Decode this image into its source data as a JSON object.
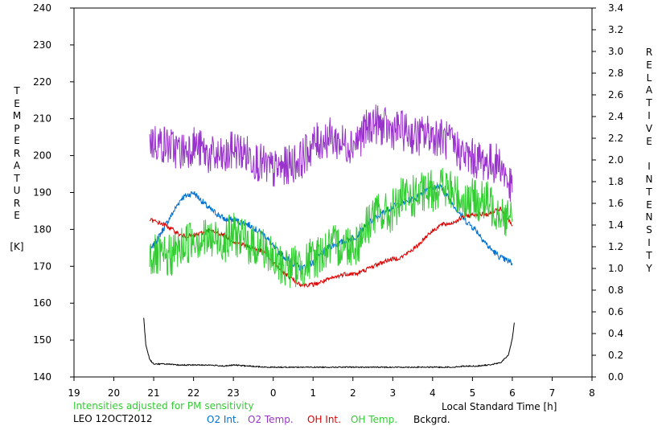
{
  "chart_data": {
    "type": "line",
    "xlabel": "Local Standard Time [h]",
    "ylabel_left": "TEMPERATURE",
    "ylabel_left_unit": "[K]",
    "ylabel_right": "RELATIVE INTENSITY",
    "x_tick_labels": [
      "19",
      "20",
      "21",
      "22",
      "23",
      "0",
      "1",
      "2",
      "3",
      "4",
      "5",
      "6",
      "7",
      "8"
    ],
    "xlim": [
      19,
      32
    ],
    "ylim_left": [
      140,
      240
    ],
    "y_left_ticks": [
      140,
      150,
      160,
      170,
      180,
      190,
      200,
      210,
      220,
      230,
      240
    ],
    "ylim_right": [
      0.0,
      3.4
    ],
    "y_right_ticks": [
      "0.0",
      "0.2",
      "0.4",
      "0.6",
      "0.8",
      "1.0",
      "1.2",
      "1.4",
      "1.6",
      "1.8",
      "2.0",
      "2.2",
      "2.4",
      "2.6",
      "2.8",
      "3.0",
      "3.2",
      "3.4"
    ],
    "note": "Intensities adjusted for PM sensitivity",
    "station": "LEO 12OCT2012",
    "colors": {
      "o2_int": "#0070d0",
      "o2_temp": "#9933cc",
      "oh_int": "#dd0000",
      "oh_temp": "#33cc33",
      "bckgrd": "#000000",
      "note": "#33cc33"
    },
    "series": [
      {
        "name": "O2 Int.",
        "color_key": "o2_int",
        "axis": "right",
        "noise": 0.03,
        "x": [
          20.9,
          21.3,
          21.7,
          22.0,
          22.4,
          22.8,
          23.0,
          23.4,
          23.8,
          24.0,
          24.3,
          24.7,
          25.0,
          25.4,
          25.8,
          26.1,
          26.5,
          26.9,
          27.2,
          27.6,
          27.9,
          28.2,
          28.5,
          28.8,
          29.1,
          29.4,
          29.7,
          30.0
        ],
        "y": [
          1.15,
          1.4,
          1.65,
          1.7,
          1.55,
          1.45,
          1.45,
          1.4,
          1.3,
          1.2,
          1.1,
          1.0,
          1.05,
          1.2,
          1.25,
          1.3,
          1.45,
          1.55,
          1.6,
          1.65,
          1.75,
          1.75,
          1.6,
          1.45,
          1.35,
          1.2,
          1.1,
          1.05
        ]
      },
      {
        "name": "O2 Temp.",
        "color_key": "o2_temp",
        "axis": "left",
        "noise": 5.5,
        "x": [
          20.9,
          21.3,
          21.7,
          22.0,
          22.4,
          22.8,
          23.0,
          23.4,
          23.8,
          24.0,
          24.3,
          24.7,
          25.0,
          25.4,
          25.8,
          26.1,
          26.5,
          26.9,
          27.2,
          27.6,
          27.9,
          28.2,
          28.5,
          28.8,
          29.1,
          29.4,
          29.7,
          30.0
        ],
        "y": [
          204,
          203,
          201,
          203,
          200,
          199,
          202,
          200,
          197,
          196,
          197,
          199,
          203,
          205,
          203,
          204,
          209,
          207,
          207,
          205,
          206,
          205,
          203,
          200,
          199,
          198,
          198,
          190
        ]
      },
      {
        "name": "OH Int.",
        "color_key": "oh_int",
        "axis": "right",
        "noise": 0.02,
        "x": [
          20.9,
          21.3,
          21.7,
          22.0,
          22.4,
          22.8,
          23.0,
          23.4,
          23.8,
          24.0,
          24.3,
          24.7,
          25.0,
          25.4,
          25.8,
          26.1,
          26.5,
          26.9,
          27.2,
          27.6,
          27.9,
          28.2,
          28.5,
          28.8,
          29.1,
          29.4,
          29.7,
          30.0
        ],
        "y": [
          1.45,
          1.4,
          1.3,
          1.3,
          1.35,
          1.3,
          1.25,
          1.2,
          1.15,
          1.05,
          0.95,
          0.85,
          0.85,
          0.9,
          0.95,
          0.95,
          1.02,
          1.08,
          1.1,
          1.2,
          1.32,
          1.4,
          1.42,
          1.48,
          1.5,
          1.5,
          1.55,
          1.4
        ]
      },
      {
        "name": "OH Temp.",
        "color_key": "oh_temp",
        "axis": "left",
        "noise": 6.0,
        "x": [
          20.9,
          21.3,
          21.7,
          22.0,
          22.4,
          22.8,
          23.0,
          23.4,
          23.8,
          24.0,
          24.3,
          24.7,
          25.0,
          25.4,
          25.8,
          26.1,
          26.5,
          26.9,
          27.2,
          27.6,
          27.9,
          28.2,
          28.5,
          28.8,
          29.1,
          29.4,
          29.7,
          30.0
        ],
        "y": [
          173,
          172,
          175,
          178,
          177,
          177,
          179,
          176,
          175,
          171,
          170,
          170,
          172,
          175,
          176,
          176,
          184,
          184,
          188,
          189,
          190,
          192,
          190,
          188,
          188,
          187,
          185,
          182
        ]
      },
      {
        "name": "Bckgrd.",
        "color_key": "bckgrd",
        "axis": "right",
        "noise": 0.005,
        "x": [
          20.75,
          20.8,
          20.9,
          21.0,
          21.3,
          21.6,
          22.0,
          22.4,
          22.8,
          23.0,
          23.4,
          23.8,
          24.0,
          24.3,
          24.7,
          25.0,
          25.4,
          25.8,
          26.1,
          26.5,
          26.9,
          27.2,
          27.6,
          27.9,
          28.2,
          28.5,
          28.8,
          29.1,
          29.4,
          29.7,
          29.9,
          30.0,
          30.05
        ],
        "y": [
          0.55,
          0.3,
          0.16,
          0.12,
          0.12,
          0.11,
          0.11,
          0.11,
          0.1,
          0.11,
          0.1,
          0.09,
          0.09,
          0.09,
          0.09,
          0.09,
          0.09,
          0.09,
          0.09,
          0.09,
          0.09,
          0.09,
          0.09,
          0.09,
          0.09,
          0.09,
          0.1,
          0.1,
          0.11,
          0.13,
          0.2,
          0.35,
          0.5
        ]
      }
    ]
  }
}
